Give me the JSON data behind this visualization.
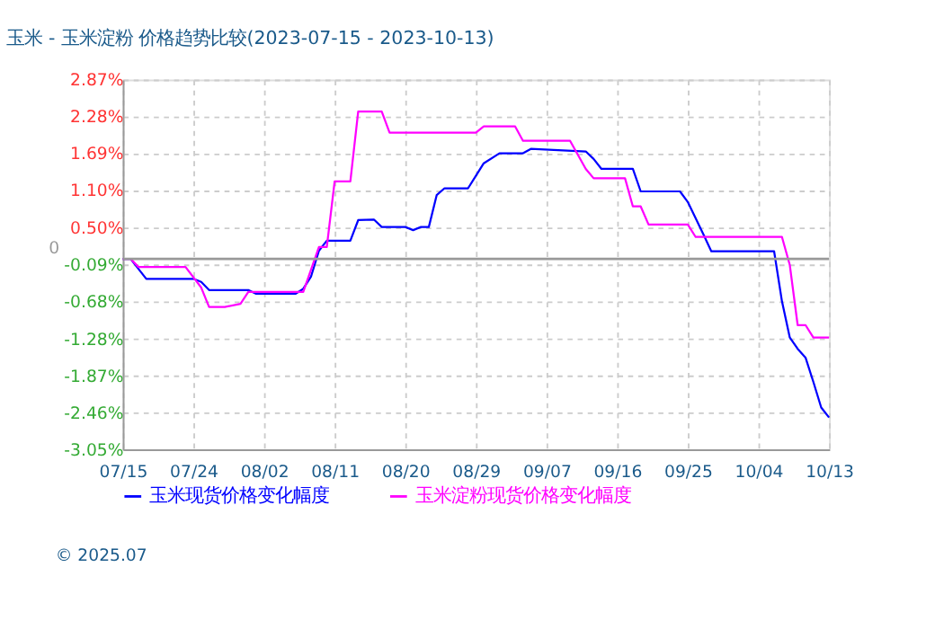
{
  "chart_data": {
    "type": "line",
    "title": "玉米 - 玉米淀粉 价格趋势比较(2023-07-15 - 2023-10-13)",
    "xlim": [
      "2023-07-15",
      "2023-10-13"
    ],
    "xticks": [
      {
        "value": "2023-07-15",
        "label": "07/15"
      },
      {
        "value": "2023-07-24",
        "label": "07/24"
      },
      {
        "value": "2023-08-02",
        "label": "08/02"
      },
      {
        "value": "2023-08-11",
        "label": "08/11"
      },
      {
        "value": "2023-08-20",
        "label": "08/20"
      },
      {
        "value": "2023-08-29",
        "label": "08/29"
      },
      {
        "value": "2023-09-07",
        "label": "09/07"
      },
      {
        "value": "2023-09-16",
        "label": "09/16"
      },
      {
        "value": "2023-09-25",
        "label": "09/25"
      },
      {
        "value": "2023-10-04",
        "label": "10/04"
      },
      {
        "value": "2023-10-13",
        "label": "10/13"
      }
    ],
    "ylim": [
      -3.05,
      2.87
    ],
    "yticks": [
      {
        "value": -3.05,
        "label": "-3.05%"
      },
      {
        "value": -2.46,
        "label": "-2.46%"
      },
      {
        "value": -1.87,
        "label": "-1.87%"
      },
      {
        "value": -1.28,
        "label": "-1.28%"
      },
      {
        "value": -0.68,
        "label": "-0.68%"
      },
      {
        "value": -0.09,
        "label": "-0.09%"
      },
      {
        "value": 0.5,
        "label": "0.50%"
      },
      {
        "value": 1.1,
        "label": "1.10%"
      },
      {
        "value": 1.69,
        "label": "1.69%"
      },
      {
        "value": 2.28,
        "label": "2.28%"
      },
      {
        "value": 2.87,
        "label": "2.87%"
      }
    ],
    "grid": true,
    "legend": "bottom",
    "marker": "none",
    "line_style": "solid",
    "ref_lines": [
      {
        "axis": "y",
        "value": 0,
        "label": "0",
        "color": "#999999"
      }
    ],
    "annotations": [
      "© 2025.07"
    ],
    "series": [
      {
        "name": "玉米现货价格变化幅度",
        "color": "#0000ff",
        "x": [
          "2023-07-15",
          "2023-07-16",
          "2023-07-18",
          "2023-07-24",
          "2023-07-25",
          "2023-07-26",
          "2023-07-31",
          "2023-08-01",
          "2023-08-06",
          "2023-08-07",
          "2023-08-08",
          "2023-08-09",
          "2023-08-10",
          "2023-08-13",
          "2023-08-14",
          "2023-08-16",
          "2023-08-17",
          "2023-08-20",
          "2023-08-21",
          "2023-08-22",
          "2023-08-23",
          "2023-08-24",
          "2023-08-25",
          "2023-08-28",
          "2023-08-29",
          "2023-08-30",
          "2023-09-01",
          "2023-09-04",
          "2023-09-05",
          "2023-09-12",
          "2023-09-13",
          "2023-09-14",
          "2023-09-18",
          "2023-09-19",
          "2023-09-24",
          "2023-09-25",
          "2023-09-27",
          "2023-09-28",
          "2023-10-06",
          "2023-10-07",
          "2023-10-08",
          "2023-10-09",
          "2023-10-10",
          "2023-10-11",
          "2023-10-12",
          "2023-10-13"
        ],
        "values": [
          0,
          0,
          -0.32,
          -0.32,
          -0.37,
          -0.5,
          -0.5,
          -0.56,
          -0.56,
          -0.48,
          -0.28,
          0.13,
          0.29,
          0.29,
          0.62,
          0.63,
          0.51,
          0.51,
          0.46,
          0.51,
          0.51,
          1.02,
          1.13,
          1.13,
          1.33,
          1.53,
          1.69,
          1.69,
          1.76,
          1.72,
          1.6,
          1.44,
          1.44,
          1.08,
          1.08,
          0.91,
          0.39,
          0.12,
          0.12,
          -0.68,
          -1.26,
          -1.44,
          -1.58,
          -1.97,
          -2.38,
          -2.54
        ]
      },
      {
        "name": "玉米淀粉现货价格变化幅度",
        "color": "#ff00ff",
        "x": [
          "2023-07-15",
          "2023-07-16",
          "2023-07-17",
          "2023-07-23",
          "2023-07-25",
          "2023-07-26",
          "2023-07-28",
          "2023-07-30",
          "2023-07-31",
          "2023-08-07",
          "2023-08-09",
          "2023-08-10",
          "2023-08-11",
          "2023-08-13",
          "2023-08-14",
          "2023-08-17",
          "2023-08-18",
          "2023-08-29",
          "2023-08-30",
          "2023-09-03",
          "2023-09-04",
          "2023-09-10",
          "2023-09-12",
          "2023-09-13",
          "2023-09-17",
          "2023-09-18",
          "2023-09-19",
          "2023-09-20",
          "2023-09-25",
          "2023-09-26",
          "2023-10-07",
          "2023-10-08",
          "2023-10-09",
          "2023-10-10",
          "2023-10-11",
          "2023-10-13"
        ],
        "values": [
          0,
          0,
          -0.13,
          -0.13,
          -0.46,
          -0.77,
          -0.77,
          -0.72,
          -0.53,
          -0.53,
          0.19,
          0.19,
          1.24,
          1.24,
          2.36,
          2.36,
          2.02,
          2.02,
          2.12,
          2.12,
          1.89,
          1.89,
          1.44,
          1.29,
          1.29,
          0.84,
          0.84,
          0.55,
          0.55,
          0.35,
          0.35,
          -0.1,
          -1.06,
          -1.06,
          -1.26,
          -1.26
        ]
      }
    ]
  }
}
